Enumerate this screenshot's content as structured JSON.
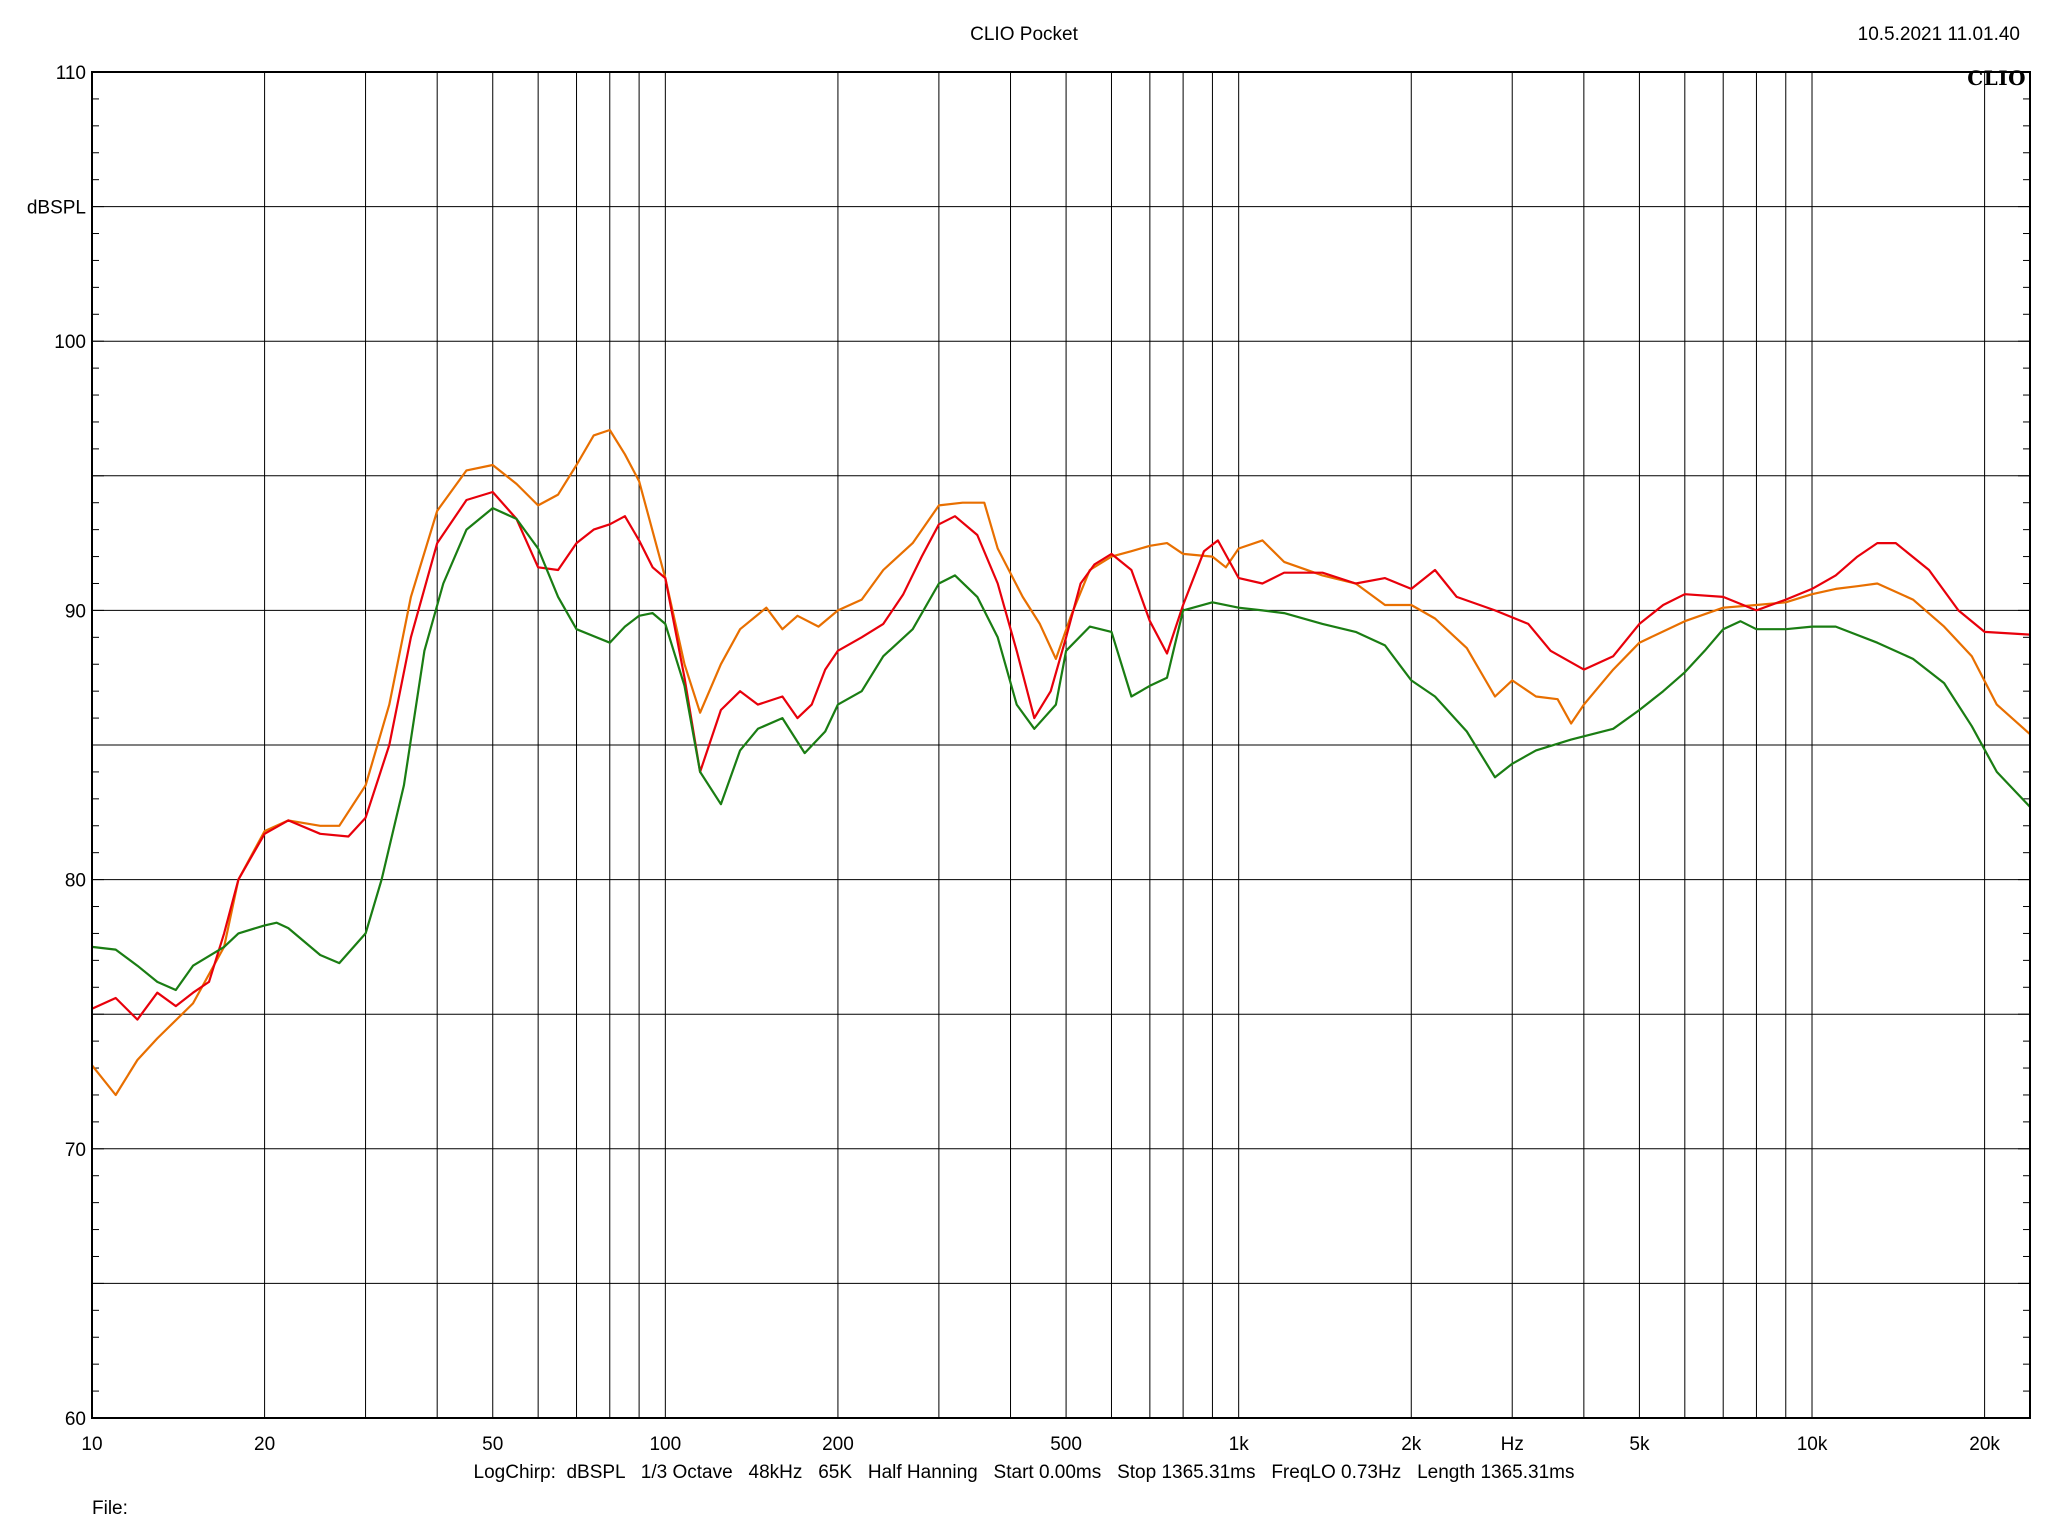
{
  "header": {
    "app_title": "CLIO Pocket",
    "timestamp": "10.5.2021 11.01.40",
    "logo_text": "CLIO"
  },
  "footer": {
    "settings": [
      "LogChirp:",
      "dBSPL",
      "1/3 Octave",
      "48kHz",
      "65K",
      "Half Hanning",
      "Start 0.00ms",
      "Stop 1365.31ms",
      "FreqLO 0.73Hz",
      "Length 1365.31ms"
    ],
    "file_label": "File:"
  },
  "chart_data": {
    "type": "line",
    "title": "CLIO Pocket",
    "xlabel": "Hz",
    "ylabel": "dBSPL",
    "x_scale": "log",
    "xlim": [
      10,
      24000
    ],
    "ylim": [
      60,
      110
    ],
    "grid": true,
    "x_ticks": [
      10,
      20,
      50,
      100,
      200,
      500,
      1000,
      2000,
      5000,
      10000,
      20000
    ],
    "x_tick_labels": [
      "10",
      "20",
      "50",
      "100",
      "200",
      "500",
      "1k",
      "2k",
      "5k",
      "10k",
      "20k"
    ],
    "y_ticks": [
      60,
      70,
      80,
      90,
      100,
      110
    ],
    "y_tick_labels": [
      "60",
      "70",
      "80",
      "90",
      "100",
      "110"
    ],
    "series": [
      {
        "color": "#e86f00",
        "points": [
          [
            10,
            73.1
          ],
          [
            11,
            72
          ],
          [
            12,
            73.3
          ],
          [
            13,
            74.1
          ],
          [
            15,
            75.4
          ],
          [
            17,
            77.5
          ],
          [
            18,
            80
          ],
          [
            20,
            81.8
          ],
          [
            22,
            82.2
          ],
          [
            25,
            82
          ],
          [
            27,
            82
          ],
          [
            30,
            83.5
          ],
          [
            33,
            86.5
          ],
          [
            36,
            90.5
          ],
          [
            40,
            93.7
          ],
          [
            45,
            95.2
          ],
          [
            50,
            95.4
          ],
          [
            55,
            94.7
          ],
          [
            60,
            93.9
          ],
          [
            65,
            94.3
          ],
          [
            70,
            95.4
          ],
          [
            75,
            96.5
          ],
          [
            80,
            96.7
          ],
          [
            85,
            95.8
          ],
          [
            90,
            94.8
          ],
          [
            100,
            91.2
          ],
          [
            108,
            88
          ],
          [
            115,
            86.2
          ],
          [
            125,
            88
          ],
          [
            135,
            89.3
          ],
          [
            150,
            90.1
          ],
          [
            160,
            89.3
          ],
          [
            170,
            89.8
          ],
          [
            185,
            89.4
          ],
          [
            200,
            90
          ],
          [
            220,
            90.4
          ],
          [
            240,
            91.5
          ],
          [
            270,
            92.5
          ],
          [
            300,
            93.9
          ],
          [
            330,
            94
          ],
          [
            360,
            94
          ],
          [
            380,
            92.3
          ],
          [
            420,
            90.5
          ],
          [
            450,
            89.5
          ],
          [
            480,
            88.2
          ],
          [
            510,
            89.8
          ],
          [
            550,
            91.5
          ],
          [
            600,
            92
          ],
          [
            650,
            92.2
          ],
          [
            700,
            92.4
          ],
          [
            750,
            92.5
          ],
          [
            800,
            92.1
          ],
          [
            900,
            92
          ],
          [
            950,
            91.6
          ],
          [
            1000,
            92.3
          ],
          [
            1100,
            92.6
          ],
          [
            1200,
            91.8
          ],
          [
            1400,
            91.3
          ],
          [
            1600,
            91
          ],
          [
            1800,
            90.2
          ],
          [
            2000,
            90.2
          ],
          [
            2200,
            89.7
          ],
          [
            2500,
            88.6
          ],
          [
            2800,
            86.8
          ],
          [
            3000,
            87.4
          ],
          [
            3300,
            86.8
          ],
          [
            3600,
            86.7
          ],
          [
            3800,
            85.8
          ],
          [
            4000,
            86.5
          ],
          [
            4500,
            87.8
          ],
          [
            5000,
            88.8
          ],
          [
            6000,
            89.6
          ],
          [
            7000,
            90.1
          ],
          [
            8000,
            90.2
          ],
          [
            9000,
            90.3
          ],
          [
            10000,
            90.6
          ],
          [
            11000,
            90.8
          ],
          [
            12000,
            90.9
          ],
          [
            13000,
            91
          ],
          [
            15000,
            90.4
          ],
          [
            17000,
            89.4
          ],
          [
            19000,
            88.3
          ],
          [
            21000,
            86.5
          ],
          [
            24000,
            85.4
          ]
        ]
      },
      {
        "color": "#e8000b",
        "points": [
          [
            10,
            75.2
          ],
          [
            11,
            75.6
          ],
          [
            12,
            74.8
          ],
          [
            13,
            75.8
          ],
          [
            14,
            75.3
          ],
          [
            15,
            75.8
          ],
          [
            16,
            76.2
          ],
          [
            17,
            78
          ],
          [
            18,
            80
          ],
          [
            20,
            81.7
          ],
          [
            22,
            82.2
          ],
          [
            25,
            81.7
          ],
          [
            28,
            81.6
          ],
          [
            30,
            82.3
          ],
          [
            33,
            85
          ],
          [
            36,
            89
          ],
          [
            40,
            92.5
          ],
          [
            45,
            94.1
          ],
          [
            50,
            94.4
          ],
          [
            55,
            93.4
          ],
          [
            60,
            91.6
          ],
          [
            65,
            91.5
          ],
          [
            70,
            92.5
          ],
          [
            75,
            93
          ],
          [
            80,
            93.2
          ],
          [
            85,
            93.5
          ],
          [
            90,
            92.6
          ],
          [
            95,
            91.6
          ],
          [
            100,
            91.2
          ],
          [
            108,
            87.5
          ],
          [
            115,
            84
          ],
          [
            125,
            86.3
          ],
          [
            135,
            87
          ],
          [
            145,
            86.5
          ],
          [
            160,
            86.8
          ],
          [
            170,
            86
          ],
          [
            180,
            86.5
          ],
          [
            190,
            87.8
          ],
          [
            200,
            88.5
          ],
          [
            220,
            89
          ],
          [
            240,
            89.5
          ],
          [
            260,
            90.6
          ],
          [
            280,
            92
          ],
          [
            300,
            93.2
          ],
          [
            320,
            93.5
          ],
          [
            350,
            92.8
          ],
          [
            380,
            91
          ],
          [
            410,
            88.5
          ],
          [
            440,
            86
          ],
          [
            470,
            87
          ],
          [
            500,
            89
          ],
          [
            530,
            91
          ],
          [
            560,
            91.7
          ],
          [
            600,
            92.1
          ],
          [
            650,
            91.5
          ],
          [
            700,
            89.6
          ],
          [
            750,
            88.4
          ],
          [
            800,
            90.2
          ],
          [
            870,
            92.2
          ],
          [
            920,
            92.6
          ],
          [
            1000,
            91.2
          ],
          [
            1100,
            91
          ],
          [
            1200,
            91.4
          ],
          [
            1400,
            91.4
          ],
          [
            1600,
            91
          ],
          [
            1800,
            91.2
          ],
          [
            2000,
            90.8
          ],
          [
            2200,
            91.5
          ],
          [
            2400,
            90.5
          ],
          [
            2800,
            90
          ],
          [
            3200,
            89.5
          ],
          [
            3500,
            88.5
          ],
          [
            4000,
            87.8
          ],
          [
            4500,
            88.3
          ],
          [
            5000,
            89.5
          ],
          [
            5500,
            90.2
          ],
          [
            6000,
            90.6
          ],
          [
            7000,
            90.5
          ],
          [
            8000,
            90
          ],
          [
            9000,
            90.4
          ],
          [
            10000,
            90.8
          ],
          [
            11000,
            91.3
          ],
          [
            12000,
            92
          ],
          [
            13000,
            92.5
          ],
          [
            14000,
            92.5
          ],
          [
            16000,
            91.5
          ],
          [
            18000,
            90
          ],
          [
            20000,
            89.2
          ],
          [
            24000,
            89.1
          ]
        ]
      },
      {
        "color": "#1a7d13",
        "points": [
          [
            10,
            77.5
          ],
          [
            11,
            77.4
          ],
          [
            12,
            76.8
          ],
          [
            13,
            76.2
          ],
          [
            14,
            75.9
          ],
          [
            15,
            76.8
          ],
          [
            17,
            77.5
          ],
          [
            18,
            78
          ],
          [
            20,
            78.3
          ],
          [
            21,
            78.4
          ],
          [
            22,
            78.2
          ],
          [
            25,
            77.2
          ],
          [
            27,
            76.9
          ],
          [
            30,
            78
          ],
          [
            32,
            80
          ],
          [
            35,
            83.5
          ],
          [
            38,
            88.5
          ],
          [
            41,
            91
          ],
          [
            45,
            93
          ],
          [
            50,
            93.8
          ],
          [
            55,
            93.4
          ],
          [
            60,
            92.3
          ],
          [
            65,
            90.5
          ],
          [
            70,
            89.3
          ],
          [
            80,
            88.8
          ],
          [
            85,
            89.4
          ],
          [
            90,
            89.8
          ],
          [
            95,
            89.9
          ],
          [
            100,
            89.5
          ],
          [
            108,
            87.2
          ],
          [
            115,
            84
          ],
          [
            125,
            82.8
          ],
          [
            135,
            84.8
          ],
          [
            145,
            85.6
          ],
          [
            160,
            86
          ],
          [
            175,
            84.7
          ],
          [
            190,
            85.5
          ],
          [
            200,
            86.5
          ],
          [
            220,
            87
          ],
          [
            240,
            88.3
          ],
          [
            270,
            89.3
          ],
          [
            300,
            91
          ],
          [
            320,
            91.3
          ],
          [
            350,
            90.5
          ],
          [
            380,
            89
          ],
          [
            410,
            86.5
          ],
          [
            440,
            85.6
          ],
          [
            480,
            86.5
          ],
          [
            500,
            88.5
          ],
          [
            550,
            89.4
          ],
          [
            600,
            89.2
          ],
          [
            650,
            86.8
          ],
          [
            700,
            87.2
          ],
          [
            750,
            87.5
          ],
          [
            800,
            90
          ],
          [
            900,
            90.3
          ],
          [
            1000,
            90.1
          ],
          [
            1100,
            90
          ],
          [
            1200,
            89.9
          ],
          [
            1400,
            89.5
          ],
          [
            1600,
            89.2
          ],
          [
            1800,
            88.7
          ],
          [
            2000,
            87.4
          ],
          [
            2200,
            86.8
          ],
          [
            2500,
            85.5
          ],
          [
            2800,
            83.8
          ],
          [
            3000,
            84.3
          ],
          [
            3300,
            84.8
          ],
          [
            3800,
            85.2
          ],
          [
            4500,
            85.6
          ],
          [
            5000,
            86.3
          ],
          [
            5500,
            87
          ],
          [
            6000,
            87.7
          ],
          [
            6500,
            88.5
          ],
          [
            7000,
            89.3
          ],
          [
            7500,
            89.6
          ],
          [
            8000,
            89.3
          ],
          [
            9000,
            89.3
          ],
          [
            10000,
            89.4
          ],
          [
            11000,
            89.4
          ],
          [
            13000,
            88.8
          ],
          [
            15000,
            88.2
          ],
          [
            17000,
            87.3
          ],
          [
            19000,
            85.7
          ],
          [
            21000,
            84
          ],
          [
            24000,
            82.7
          ]
        ]
      }
    ]
  }
}
